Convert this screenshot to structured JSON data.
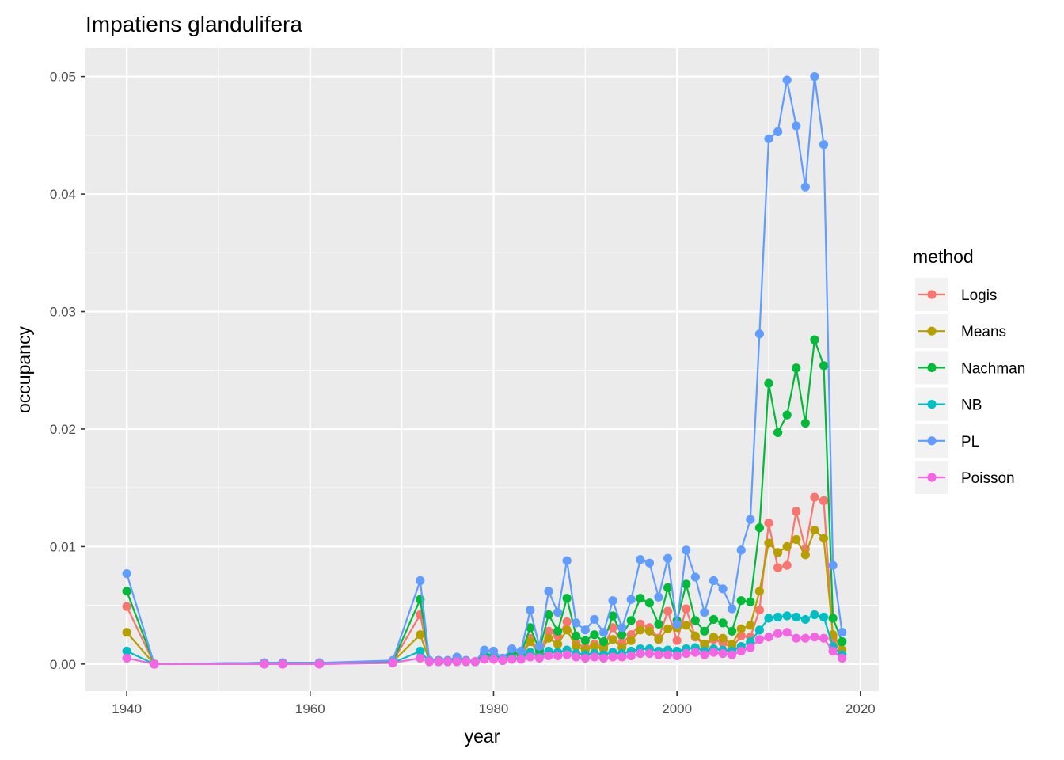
{
  "chart_data": {
    "type": "line",
    "title": "Impatiens glandulifera",
    "xlabel": "year",
    "ylabel": "occupancy",
    "xlim": [
      1935.5,
      2022
    ],
    "ylim": [
      -0.0023,
      0.0524
    ],
    "x_ticks": [
      1940,
      1960,
      1980,
      2000,
      2020
    ],
    "x_tick_labels": [
      "1940",
      "1960",
      "1980",
      "2000",
      "2020"
    ],
    "y_ticks": [
      0,
      0.01,
      0.02,
      0.03,
      0.04,
      0.05
    ],
    "y_tick_labels": [
      "0.00",
      "0.01",
      "0.02",
      "0.03",
      "0.04",
      "0.05"
    ],
    "grid": true,
    "legend": {
      "title": "method",
      "position": "right"
    },
    "x": [
      1940,
      1943,
      1955,
      1957,
      1961,
      1969,
      1972,
      1973,
      1974,
      1975,
      1976,
      1977,
      1978,
      1979,
      1980,
      1981,
      1982,
      1983,
      1984,
      1985,
      1986,
      1987,
      1988,
      1989,
      1990,
      1991,
      1992,
      1993,
      1994,
      1995,
      1996,
      1997,
      1998,
      1999,
      2000,
      2001,
      2002,
      2003,
      2004,
      2005,
      2006,
      2007,
      2008,
      2009,
      2010,
      2011,
      2012,
      2013,
      2014,
      2015,
      2016,
      2017,
      2018
    ],
    "series": [
      {
        "name": "Logis",
        "color": "#F8766D",
        "values": [
          0.0049,
          0.0,
          0.0001,
          0.0001,
          0.0001,
          0.0002,
          0.0042,
          0.0003,
          0.0003,
          0.0003,
          0.0004,
          0.0003,
          0.0002,
          0.0008,
          0.0006,
          0.0004,
          0.0009,
          0.0008,
          0.0022,
          0.001,
          0.0028,
          0.0024,
          0.0036,
          0.0018,
          0.0014,
          0.0017,
          0.0015,
          0.0031,
          0.0018,
          0.0025,
          0.0034,
          0.0031,
          0.0022,
          0.0045,
          0.002,
          0.0047,
          0.0023,
          0.0016,
          0.0021,
          0.0018,
          0.0014,
          0.0024,
          0.0023,
          0.0046,
          0.012,
          0.0082,
          0.0084,
          0.013,
          0.0098,
          0.0142,
          0.0139,
          0.0022,
          0.0008
        ]
      },
      {
        "name": "Means",
        "color": "#B79F00",
        "values": [
          0.0027,
          0.0,
          0.0001,
          0.0001,
          0.0001,
          0.0002,
          0.0025,
          0.0003,
          0.0003,
          0.0002,
          0.0004,
          0.0003,
          0.0002,
          0.0007,
          0.0006,
          0.0004,
          0.0008,
          0.0007,
          0.0019,
          0.0009,
          0.0022,
          0.0017,
          0.0029,
          0.0015,
          0.0012,
          0.0015,
          0.0013,
          0.0021,
          0.0014,
          0.002,
          0.0029,
          0.0028,
          0.0021,
          0.003,
          0.0031,
          0.0033,
          0.0024,
          0.0017,
          0.0023,
          0.0022,
          0.0017,
          0.003,
          0.0033,
          0.0062,
          0.0103,
          0.0095,
          0.01,
          0.0106,
          0.0093,
          0.0114,
          0.0107,
          0.0025,
          0.0012
        ]
      },
      {
        "name": "Nachman",
        "color": "#00BA38",
        "values": [
          0.0062,
          0.0,
          0.0001,
          0.0001,
          0.0001,
          0.0002,
          0.0055,
          0.0003,
          0.0003,
          0.0003,
          0.0004,
          0.0003,
          0.0002,
          0.0009,
          0.0007,
          0.0005,
          0.001,
          0.0009,
          0.0031,
          0.0012,
          0.0042,
          0.0028,
          0.0056,
          0.0024,
          0.002,
          0.0025,
          0.0019,
          0.0041,
          0.0025,
          0.0037,
          0.0056,
          0.0052,
          0.0034,
          0.0065,
          0.0037,
          0.0068,
          0.0037,
          0.0028,
          0.0038,
          0.0035,
          0.0028,
          0.0054,
          0.0053,
          0.0116,
          0.0239,
          0.0197,
          0.0212,
          0.0252,
          0.0205,
          0.0276,
          0.0254,
          0.0039,
          0.0019
        ]
      },
      {
        "name": "NB",
        "color": "#00BFC4",
        "values": [
          0.0011,
          0.0,
          0.0,
          0.0,
          0.0,
          0.0001,
          0.0011,
          0.0002,
          0.0002,
          0.0002,
          0.0002,
          0.0002,
          0.0002,
          0.0005,
          0.0005,
          0.0003,
          0.0005,
          0.0005,
          0.001,
          0.0006,
          0.0011,
          0.001,
          0.0012,
          0.0009,
          0.0008,
          0.0009,
          0.0008,
          0.001,
          0.0009,
          0.0011,
          0.0013,
          0.0013,
          0.0011,
          0.0012,
          0.0011,
          0.0013,
          0.0014,
          0.0011,
          0.0013,
          0.0012,
          0.0011,
          0.0015,
          0.0019,
          0.0029,
          0.0039,
          0.004,
          0.0041,
          0.004,
          0.0038,
          0.0042,
          0.004,
          0.0015,
          0.0008
        ]
      },
      {
        "name": "PL",
        "color": "#619CFF",
        "values": [
          0.0077,
          0.0,
          0.0001,
          0.0001,
          0.0001,
          0.0003,
          0.0071,
          0.0003,
          0.0003,
          0.0003,
          0.0006,
          0.0003,
          0.0002,
          0.0012,
          0.0011,
          0.0005,
          0.0013,
          0.0011,
          0.0046,
          0.0015,
          0.0062,
          0.0044,
          0.0088,
          0.0035,
          0.0029,
          0.0038,
          0.0027,
          0.0054,
          0.0031,
          0.0055,
          0.0089,
          0.0086,
          0.0057,
          0.009,
          0.0034,
          0.0097,
          0.0074,
          0.0044,
          0.0071,
          0.0064,
          0.0047,
          0.0097,
          0.0123,
          0.0281,
          0.0447,
          0.0453,
          0.0497,
          0.0458,
          0.0406,
          0.05,
          0.0442,
          0.0084,
          0.0027
        ]
      },
      {
        "name": "Poisson",
        "color": "#F564E3",
        "values": [
          0.0005,
          0.0,
          0.0,
          0.0,
          0.0,
          0.0001,
          0.0005,
          0.0002,
          0.0002,
          0.0002,
          0.0002,
          0.0002,
          0.0002,
          0.0004,
          0.0004,
          0.0003,
          0.0004,
          0.0004,
          0.0006,
          0.0005,
          0.0007,
          0.0007,
          0.0008,
          0.0006,
          0.0005,
          0.0006,
          0.0005,
          0.0006,
          0.0006,
          0.0007,
          0.0009,
          0.0009,
          0.0008,
          0.0008,
          0.0007,
          0.0009,
          0.001,
          0.0008,
          0.001,
          0.0009,
          0.0008,
          0.0011,
          0.0014,
          0.0021,
          0.0023,
          0.0026,
          0.0027,
          0.0022,
          0.0022,
          0.0023,
          0.0022,
          0.0011,
          0.0005
        ]
      }
    ]
  }
}
